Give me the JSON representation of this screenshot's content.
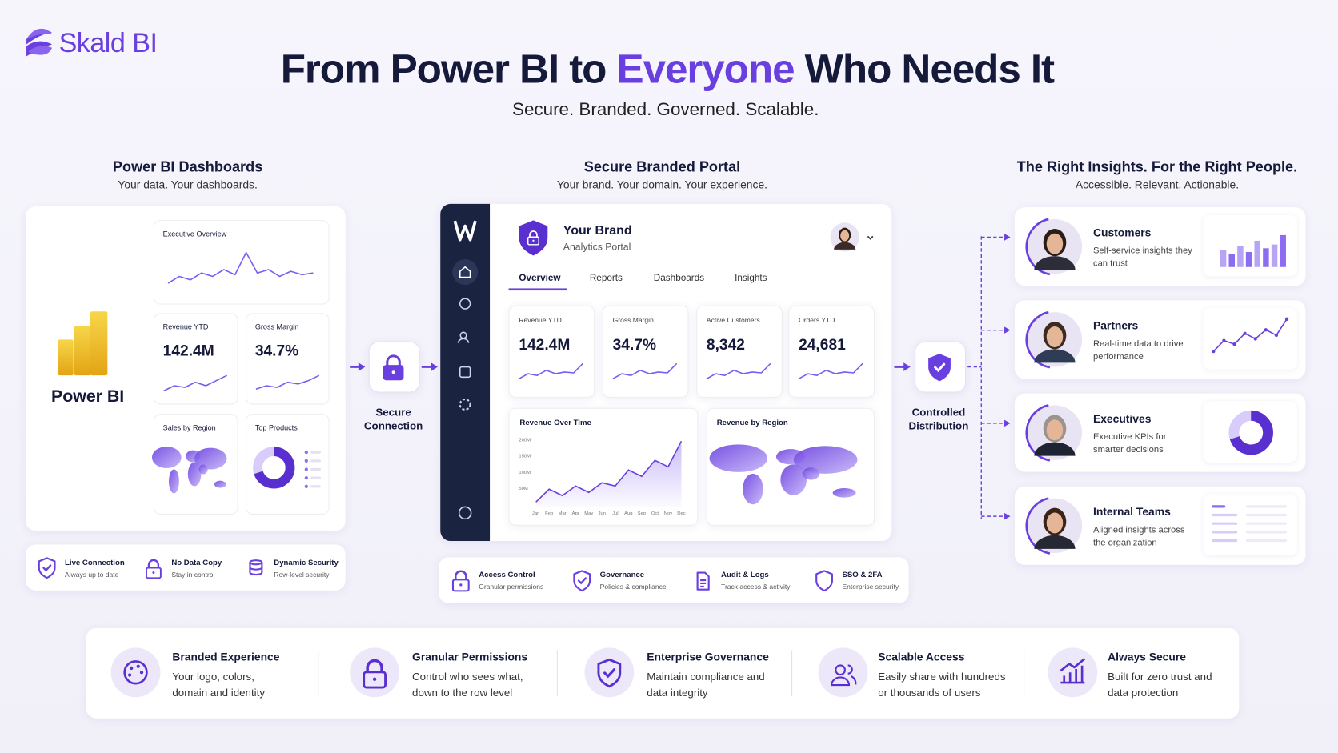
{
  "brand": "Skald BI",
  "header": {
    "title": [
      "From Power BI to ",
      "Everyone",
      " Who Needs It"
    ],
    "subtitle": "Secure. Branded. Governed. Scalable."
  },
  "sections": [
    {
      "title": "Power BI Dashboards",
      "subtitle": "Your data. Your dashboards."
    },
    {
      "title": "Secure Branded Portal",
      "subtitle": "Your brand. Your domain. Your experience."
    },
    {
      "title": "The Right Insights. For the Right People.",
      "subtitle": "Accessible. Relevant. Actionable."
    }
  ],
  "power_bi": {
    "label": "Power BI",
    "cards": [
      {
        "title": "Executive Overview"
      },
      {
        "title": "Revenue YTD",
        "value": "142.4M"
      },
      {
        "title": "Gross Margin",
        "value": "34.7%"
      },
      {
        "title": "Sales by Region"
      },
      {
        "title": "Top Products"
      }
    ]
  },
  "power_bi_features": [
    {
      "title": "Live Connection",
      "subtitle": "Always up to date"
    },
    {
      "title": "No Data Copy",
      "subtitle": "Stay in control"
    },
    {
      "title": "Dynamic Security",
      "subtitle": "Row-level security"
    }
  ],
  "connectors": [
    "Secure Connection",
    "Controlled Distribution"
  ],
  "portal": {
    "brand": "Your Brand",
    "subtitle": "Analytics Portal",
    "tabs": [
      "Overview",
      "Reports",
      "Dashboards",
      "Insights"
    ],
    "kpis": [
      {
        "title": "Revenue YTD",
        "value": "142.4M"
      },
      {
        "title": "Gross Margin",
        "value": "34.7%"
      },
      {
        "title": "Active Customers",
        "value": "8,342"
      },
      {
        "title": "Orders YTD",
        "value": "24,681"
      }
    ],
    "revenue_chart": {
      "title": "Revenue Over Time",
      "yticks": [
        "200M",
        "150M",
        "100M",
        "50M"
      ],
      "months": [
        "Jan",
        "Feb",
        "Mar",
        "Apr",
        "May",
        "Jun",
        "Jul",
        "Aug",
        "Sep",
        "Oct",
        "Nov",
        "Dec"
      ]
    },
    "region_chart": {
      "title": "Revenue by Region"
    }
  },
  "portal_features": [
    {
      "title": "Access Control",
      "subtitle": "Granular permissions"
    },
    {
      "title": "Governance",
      "subtitle": "Policies & compliance"
    },
    {
      "title": "Audit & Logs",
      "subtitle": "Track access & activity"
    },
    {
      "title": "SSO & 2FA",
      "subtitle": "Enterprise security"
    }
  ],
  "audiences": [
    {
      "name": "Customers",
      "description": "Self-service insights they can trust"
    },
    {
      "name": "Partners",
      "description": "Real-time data to drive performance"
    },
    {
      "name": "Executives",
      "description": "Executive KPIs for smarter decisions"
    },
    {
      "name": "Internal Teams",
      "description": "Aligned insights across the organization"
    }
  ],
  "benefits": [
    {
      "title": "Branded Experience",
      "description": "Your logo, colors, domain and identity"
    },
    {
      "title": "Granular Permissions",
      "description": "Control who sees what, down to the row level"
    },
    {
      "title": "Enterprise Governance",
      "description": "Maintain compliance and data integrity"
    },
    {
      "title": "Scalable Access",
      "description": "Easily share with hundreds or thousands of users"
    },
    {
      "title": "Always Secure",
      "description": "Built for zero trust and data protection"
    }
  ]
}
